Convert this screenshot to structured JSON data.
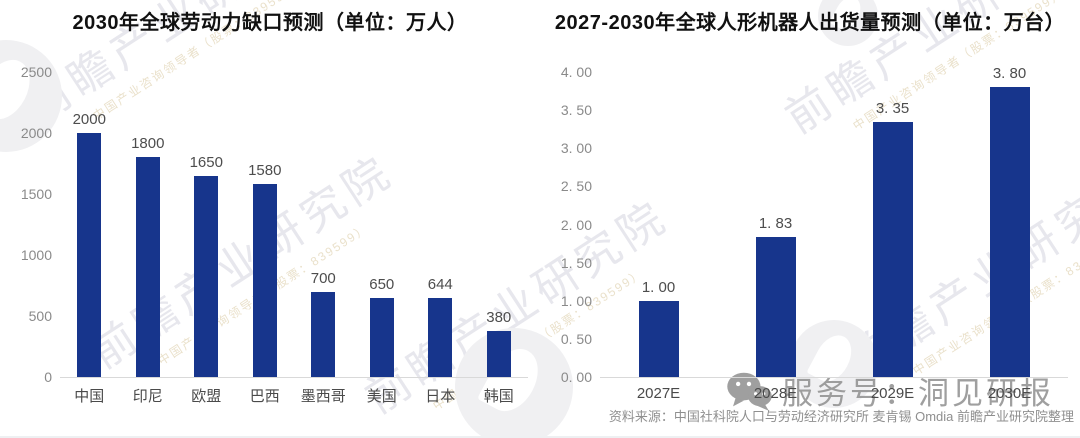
{
  "chart_data": [
    {
      "type": "bar",
      "title": "2030年全球劳动力缺口预测（单位：万人）",
      "categories": [
        "中国",
        "印尼",
        "欧盟",
        "巴西",
        "墨西哥",
        "美国",
        "日本",
        "韩国"
      ],
      "values": [
        2000,
        1800,
        1650,
        1580,
        700,
        650,
        644,
        380
      ],
      "data_labels": [
        "2000",
        "1800",
        "1650",
        "1580",
        "700",
        "650",
        "644",
        "380"
      ],
      "xlabel": "",
      "ylabel": "",
      "ylim": [
        0,
        2500
      ],
      "ytick_interval": 500,
      "ytick_labels": [
        "0",
        "500",
        "1000",
        "1500",
        "2000",
        "2500"
      ],
      "grid": false,
      "legend": "none",
      "bar_color": "#17358c"
    },
    {
      "type": "bar",
      "title": "2027-2030年全球人形机器人出货量预测（单位：万台）",
      "categories": [
        "2027E",
        "2028E",
        "2029E",
        "2030E"
      ],
      "values": [
        1.0,
        1.83,
        3.35,
        3.8
      ],
      "data_labels": [
        "1. 00",
        "1. 83",
        "3. 35",
        "3. 80"
      ],
      "xlabel": "",
      "ylabel": "",
      "ylim": [
        0,
        4.0
      ],
      "ytick_interval": 0.5,
      "ytick_labels": [
        "0. 00",
        "0. 50",
        "1. 00",
        "1. 50",
        "2. 00",
        "2. 50",
        "3. 00",
        "3. 50",
        "4. 00"
      ],
      "grid": false,
      "legend": "none",
      "bar_color": "#17358c"
    }
  ],
  "footer": {
    "source_text": "资料来源：中国社科院人口与劳动经济研究所 麦肯锡 Omdia 前瞻产业研究院整理"
  },
  "account_watermark": {
    "icon": "wechat-icon",
    "text": "服务号：洞见研报"
  },
  "brand_watermark": {
    "text": "前瞻产业研究院",
    "subtext": "中国产业咨询领导者（股票：839599）"
  },
  "colors": {
    "bar": "#17358c",
    "axis_line": "#d9d9d9",
    "tick_label": "#8a8a8a",
    "data_label": "#4d4d4d",
    "title": "#111111",
    "watermark_gray": "#8f8f8f",
    "background": "#ffffff"
  }
}
